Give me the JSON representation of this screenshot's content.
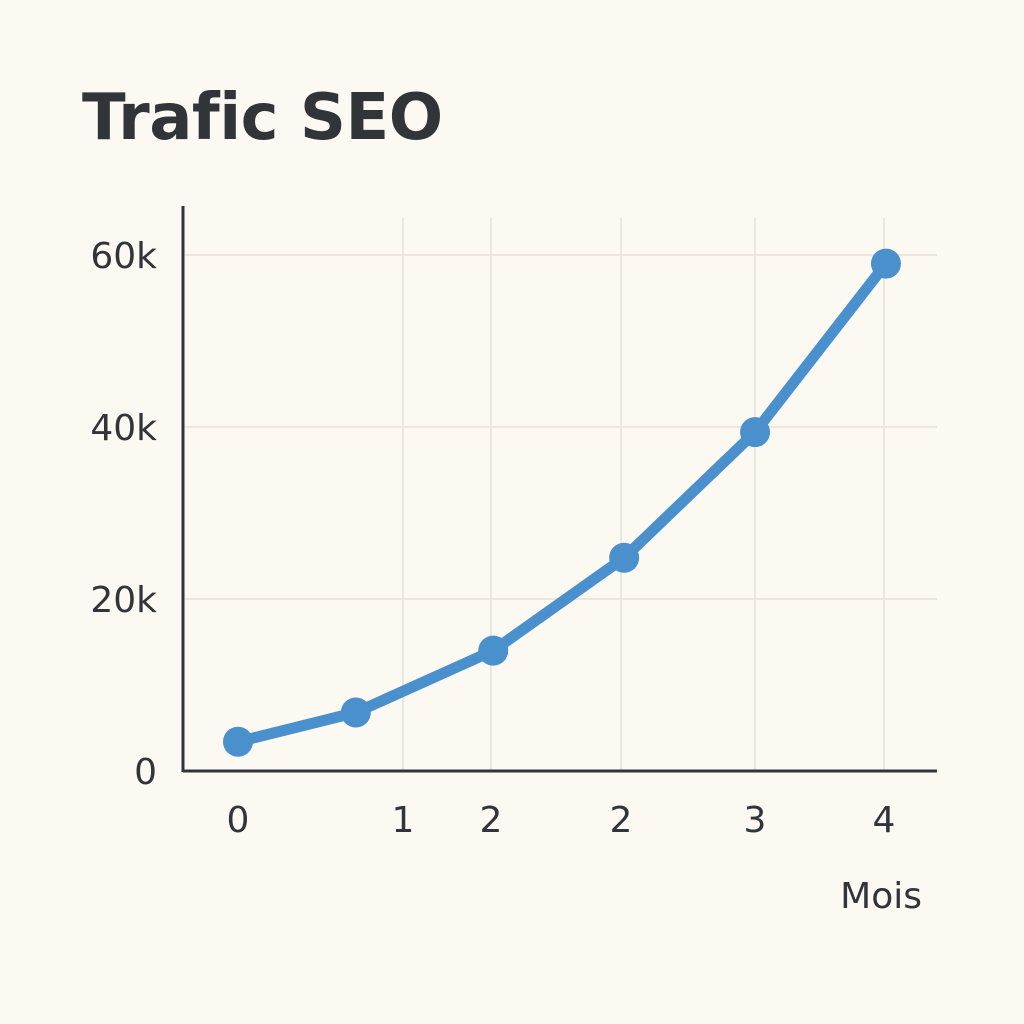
{
  "chart_data": {
    "type": "line",
    "title": "Trafic SEO",
    "xlabel": "Mois",
    "ylabel": "",
    "x_tick_labels": [
      "0",
      "1",
      "2",
      "2",
      "3",
      "4"
    ],
    "y_tick_labels": [
      "0",
      "20k",
      "40k",
      "60k"
    ],
    "y_ticks": [
      0,
      20000,
      40000,
      60000
    ],
    "ylim": [
      0,
      60000
    ],
    "grid": true,
    "legend": "none",
    "series": [
      {
        "x": [
          0,
          0.9,
          1.95,
          2.95,
          3.95,
          4.95
        ],
        "values": [
          3400,
          6800,
          14000,
          24800,
          39400,
          59000
        ]
      }
    ]
  },
  "colors": {
    "background": "#fcf9f3",
    "line": "#4a90cc",
    "axis": "#31353a",
    "grid": "#ebe7de",
    "text": "#31353a"
  }
}
